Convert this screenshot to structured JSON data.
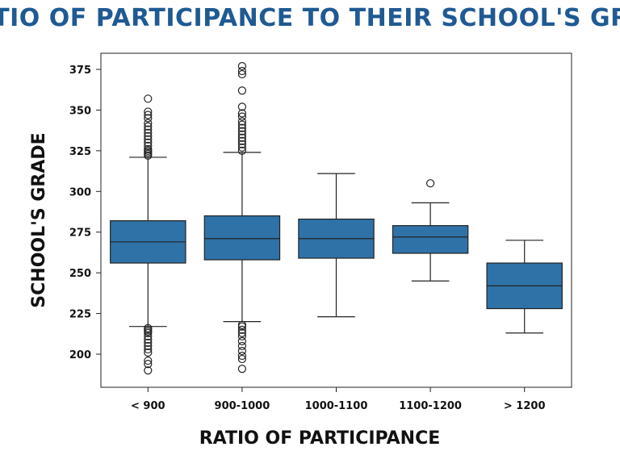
{
  "chart_data": {
    "type": "box",
    "title": "RATIO OF PARTICIPANCE TO THEIR SCHOOL'S GRADE",
    "xlabel": "RATIO OF PARTICIPANCE",
    "ylabel": "SCHOOL'S GRADE",
    "ylim": [
      180,
      380
    ],
    "yticks": [
      200,
      225,
      250,
      275,
      300,
      325,
      350,
      375
    ],
    "categories": [
      "< 900",
      "900-1000",
      "1000-1100",
      "1100-1200",
      "> 1200"
    ],
    "color": "#2f72a8",
    "grid": false,
    "boxes": [
      {
        "category": "< 900",
        "whisker_low": 217,
        "q1": 256,
        "median": 269,
        "q3": 282,
        "whisker_high": 321,
        "outliers": [
          190,
          194,
          196,
          201,
          203,
          205,
          207,
          209,
          211,
          213,
          214,
          215,
          216,
          322,
          323,
          324,
          325,
          326,
          328,
          330,
          332,
          334,
          336,
          338,
          340,
          342,
          345,
          347,
          349,
          357
        ]
      },
      {
        "category": "900-1000",
        "whisker_low": 220,
        "q1": 258,
        "median": 271,
        "q3": 285,
        "whisker_high": 324,
        "outliers": [
          191,
          197,
          199,
          202,
          205,
          208,
          211,
          213,
          215,
          217,
          218,
          325,
          327,
          329,
          331,
          333,
          335,
          337,
          339,
          341,
          343,
          346,
          348,
          352,
          362,
          372,
          374,
          377
        ]
      },
      {
        "category": "1000-1100",
        "whisker_low": 223,
        "q1": 259,
        "median": 271,
        "q3": 283,
        "whisker_high": 311,
        "outliers": []
      },
      {
        "category": "1100-1200",
        "whisker_low": 245,
        "q1": 262,
        "median": 272,
        "q3": 279,
        "whisker_high": 293,
        "outliers": [
          305
        ]
      },
      {
        "category": "> 1200",
        "whisker_low": 213,
        "q1": 228,
        "median": 242,
        "q3": 256,
        "whisker_high": 270,
        "outliers": []
      }
    ]
  }
}
